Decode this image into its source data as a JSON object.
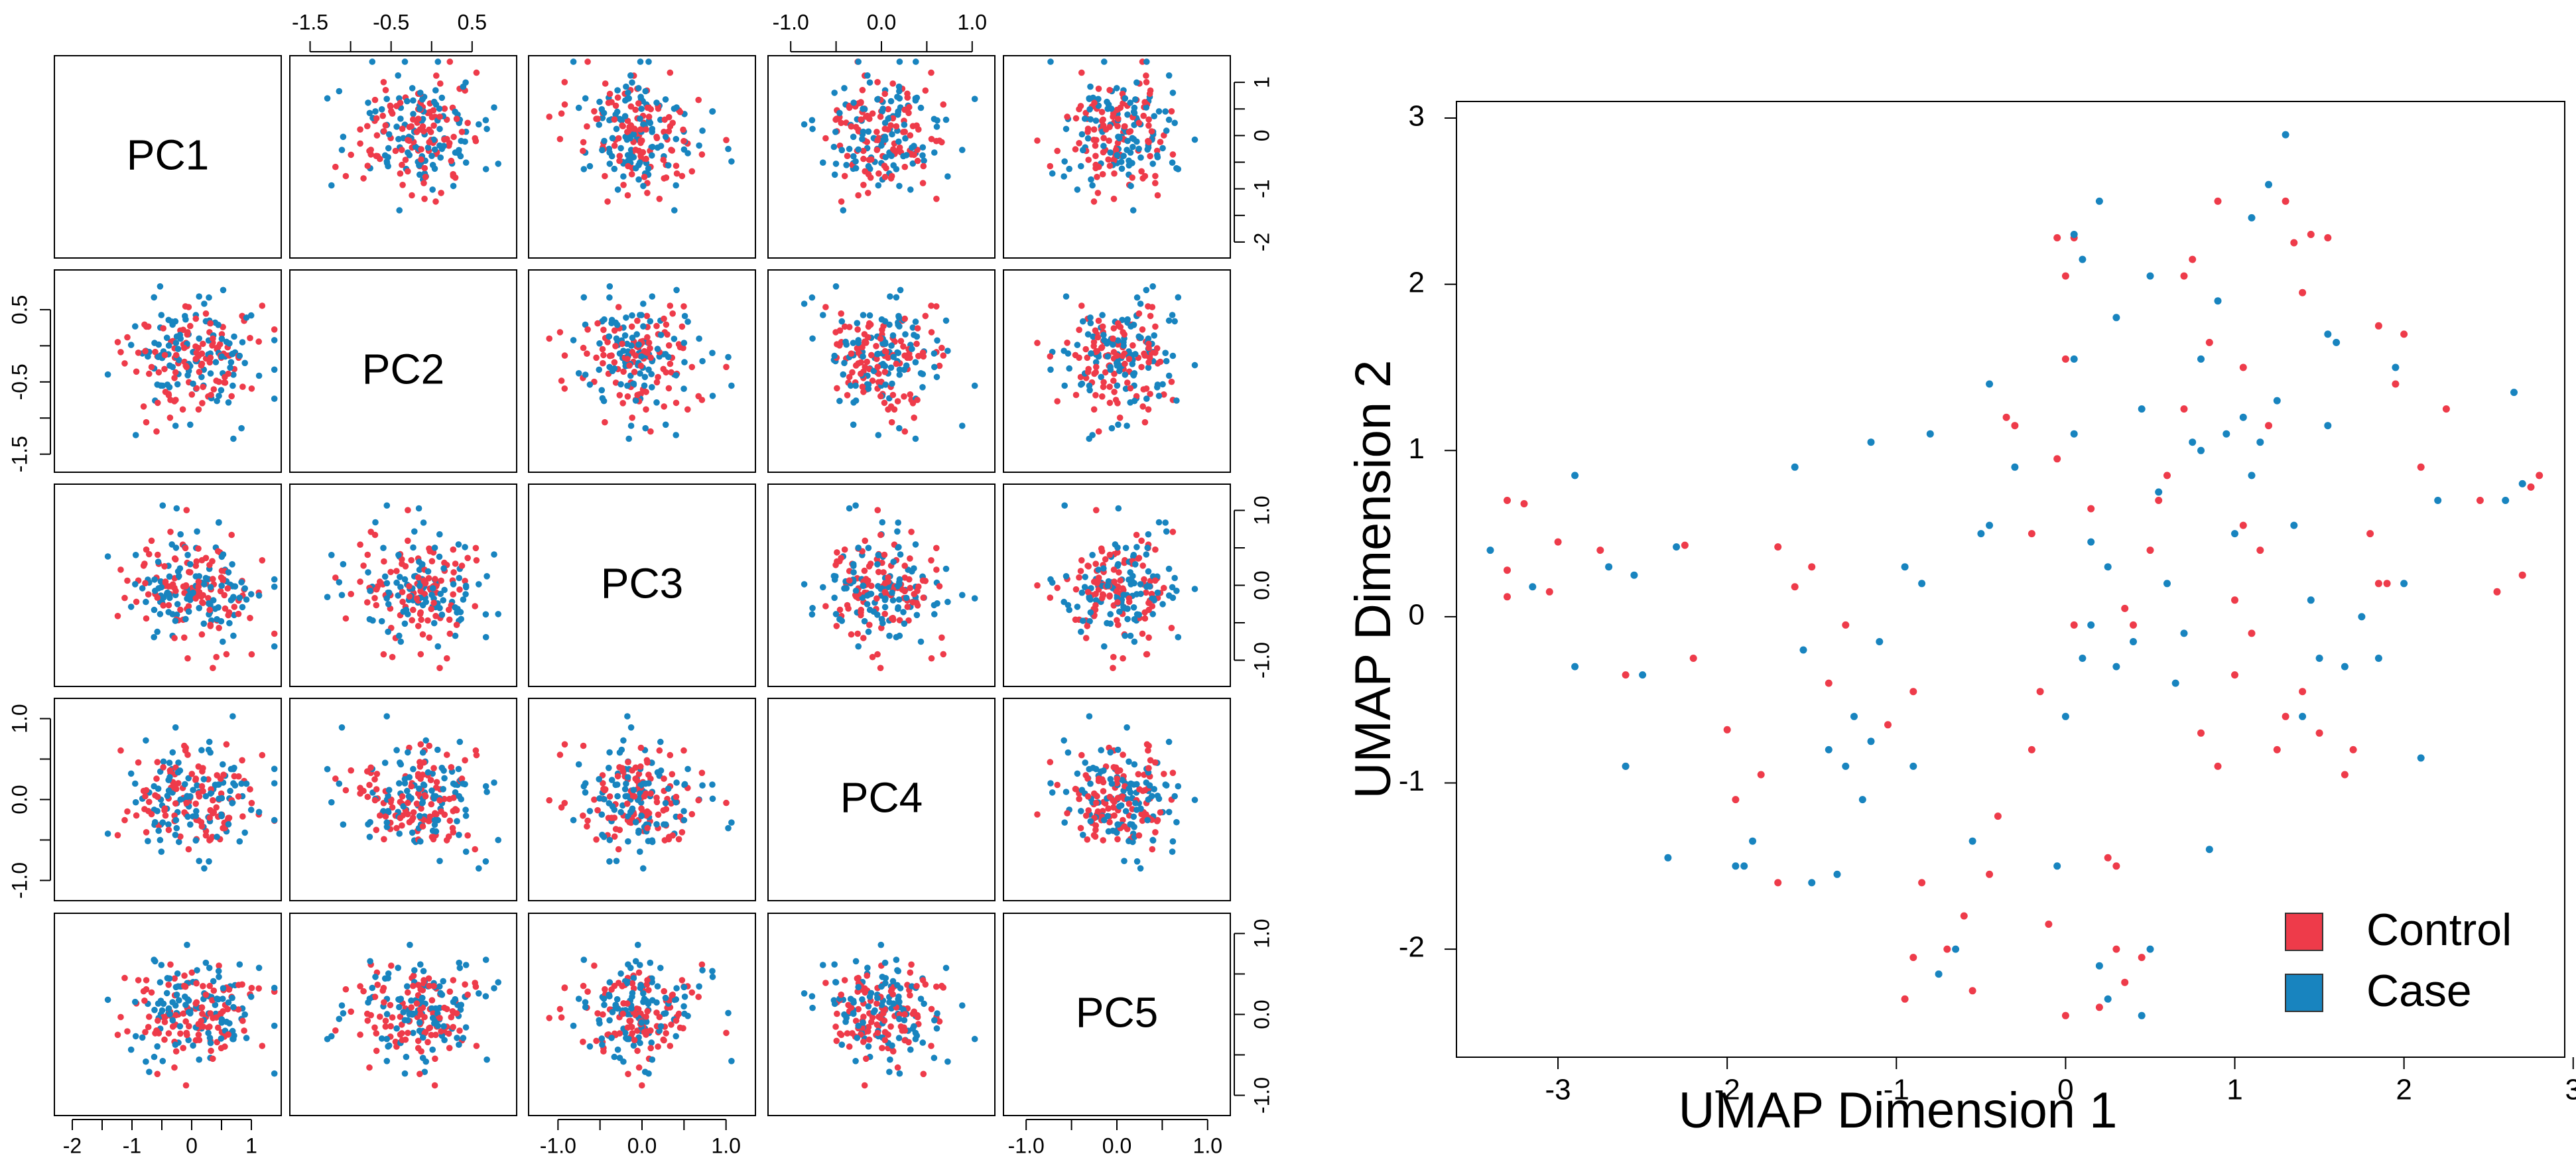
{
  "colors": {
    "control": "#ee3b4a",
    "case": "#1884bf",
    "axis": "#000000",
    "background": "#ffffff"
  },
  "chart_data": [
    {
      "type": "scatter",
      "subtype": "pairs",
      "variables": [
        "PC1",
        "PC2",
        "PC3",
        "PC4",
        "PC5"
      ],
      "groups": [
        "Control",
        "Case"
      ],
      "ranges": {
        "PC1": [
          -2.3,
          1.5
        ],
        "PC2": [
          -1.75,
          1.05
        ],
        "PC3": [
          -1.35,
          1.35
        ],
        "PC4": [
          -1.25,
          1.25
        ],
        "PC5": [
          -1.25,
          1.25
        ]
      },
      "tick_labels": {
        "PC1": [
          "-2",
          "-1",
          "0",
          "1"
        ],
        "PC2": [
          "-1.5",
          "-0.5",
          "0.5"
        ],
        "PC3": [
          "-1.0",
          "0.0",
          "1.0"
        ],
        "PC4": [
          "-1.0",
          "0.0",
          "1.0"
        ],
        "PC5": [
          "-1.0",
          "0.0",
          "1.0"
        ]
      },
      "grid": false,
      "legend": "none"
    },
    {
      "type": "scatter",
      "xlabel": "UMAP Dimension 1",
      "ylabel": "UMAP Dimension 2",
      "xlim": [
        -3.6,
        2.95
      ],
      "ylim": [
        -2.65,
        3.1
      ],
      "x_tick_labels": [
        "-3",
        "-2",
        "-1",
        "0",
        "1",
        "2",
        "3"
      ],
      "y_tick_labels": [
        "-2",
        "-1",
        "0",
        "1",
        "2",
        "3"
      ],
      "grid": false,
      "legend": "bottom-right",
      "legend_entries": [
        "Control",
        "Case"
      ],
      "series": [
        {
          "name": "Control",
          "points": [
            [
              -3.3,
              0.7
            ],
            [
              -3.2,
              0.68
            ],
            [
              -3.3,
              0.28
            ],
            [
              -3.3,
              0.12
            ],
            [
              -3.0,
              0.45
            ],
            [
              -3.05,
              0.15
            ],
            [
              -2.75,
              0.4
            ],
            [
              -2.25,
              0.43
            ],
            [
              -2.2,
              -0.25
            ],
            [
              -2.6,
              -0.35
            ],
            [
              -2.6,
              -0.9
            ],
            [
              -2.0,
              -0.68
            ],
            [
              -1.95,
              -1.1
            ],
            [
              -1.7,
              -1.6
            ],
            [
              -1.8,
              -0.95
            ],
            [
              -1.6,
              0.18
            ],
            [
              -1.5,
              0.3
            ],
            [
              -1.7,
              0.42
            ],
            [
              -1.3,
              -0.05
            ],
            [
              -1.05,
              -0.65
            ],
            [
              -0.9,
              -0.45
            ],
            [
              -0.85,
              -1.6
            ],
            [
              -0.9,
              -2.05
            ],
            [
              -0.95,
              -2.3
            ],
            [
              -0.7,
              -2.0
            ],
            [
              -0.6,
              -1.8
            ],
            [
              -0.55,
              -2.25
            ],
            [
              -0.45,
              -1.55
            ],
            [
              -0.4,
              -1.2
            ],
            [
              -0.35,
              1.2
            ],
            [
              -0.3,
              1.15
            ],
            [
              -0.2,
              0.5
            ],
            [
              -0.15,
              -0.45
            ],
            [
              -0.2,
              -0.8
            ],
            [
              -0.1,
              -1.85
            ],
            [
              0.0,
              -2.4
            ],
            [
              0.2,
              -2.35
            ],
            [
              0.25,
              -1.45
            ],
            [
              0.3,
              -2.0
            ],
            [
              0.35,
              -2.2
            ],
            [
              0.45,
              -2.05
            ],
            [
              0.0,
              1.55
            ],
            [
              0.0,
              2.05
            ],
            [
              0.05,
              2.28
            ],
            [
              -0.05,
              2.28
            ],
            [
              0.05,
              -0.05
            ],
            [
              0.15,
              0.65
            ],
            [
              0.35,
              0.05
            ],
            [
              0.4,
              -0.05
            ],
            [
              0.5,
              0.4
            ],
            [
              0.55,
              0.7
            ],
            [
              0.6,
              0.85
            ],
            [
              0.7,
              2.05
            ],
            [
              0.75,
              2.15
            ],
            [
              0.9,
              2.5
            ],
            [
              0.85,
              1.65
            ],
            [
              0.7,
              1.25
            ],
            [
              0.8,
              -0.7
            ],
            [
              0.9,
              -0.9
            ],
            [
              1.0,
              -0.35
            ],
            [
              1.0,
              0.1
            ],
            [
              1.05,
              0.55
            ],
            [
              1.1,
              -0.1
            ],
            [
              1.15,
              0.4
            ],
            [
              1.2,
              1.15
            ],
            [
              1.05,
              1.5
            ],
            [
              1.3,
              2.5
            ],
            [
              1.35,
              2.25
            ],
            [
              1.45,
              2.3
            ],
            [
              1.4,
              1.95
            ],
            [
              1.25,
              -0.8
            ],
            [
              1.3,
              -0.6
            ],
            [
              1.4,
              -0.45
            ],
            [
              1.5,
              -0.7
            ],
            [
              1.55,
              2.28
            ],
            [
              1.65,
              -0.95
            ],
            [
              1.7,
              -0.8
            ],
            [
              1.8,
              0.5
            ],
            [
              1.85,
              0.2
            ],
            [
              1.9,
              0.2
            ],
            [
              1.85,
              1.75
            ],
            [
              1.95,
              1.4
            ],
            [
              2.0,
              1.7
            ],
            [
              2.1,
              0.9
            ],
            [
              2.25,
              1.25
            ],
            [
              2.45,
              0.7
            ],
            [
              2.55,
              0.15
            ],
            [
              2.7,
              0.25
            ],
            [
              2.8,
              0.85
            ],
            [
              2.75,
              0.78
            ],
            [
              -0.05,
              0.95
            ],
            [
              0.3,
              -1.5
            ],
            [
              -1.4,
              -0.4
            ]
          ]
        },
        {
          "name": "Case",
          "points": [
            [
              -3.4,
              0.4
            ],
            [
              -3.15,
              0.18
            ],
            [
              -2.9,
              0.85
            ],
            [
              -2.9,
              -0.3
            ],
            [
              -2.7,
              0.3
            ],
            [
              -2.5,
              -0.35
            ],
            [
              -2.6,
              -0.9
            ],
            [
              -2.35,
              -1.45
            ],
            [
              -2.3,
              0.42
            ],
            [
              -1.9,
              -1.5
            ],
            [
              -1.85,
              -1.35
            ],
            [
              -1.6,
              0.9
            ],
            [
              -1.55,
              -0.2
            ],
            [
              -1.5,
              -1.6
            ],
            [
              -1.4,
              -0.8
            ],
            [
              -1.35,
              -1.55
            ],
            [
              -1.3,
              -0.9
            ],
            [
              -1.25,
              -0.6
            ],
            [
              -1.2,
              -1.1
            ],
            [
              -1.15,
              1.05
            ],
            [
              -1.15,
              -0.75
            ],
            [
              -1.1,
              -0.15
            ],
            [
              -0.95,
              0.3
            ],
            [
              -0.85,
              0.2
            ],
            [
              -0.9,
              -0.9
            ],
            [
              -0.8,
              1.1
            ],
            [
              -0.65,
              -2.0
            ],
            [
              -0.5,
              0.5
            ],
            [
              -0.45,
              0.55
            ],
            [
              -0.45,
              1.4
            ],
            [
              -0.3,
              0.9
            ],
            [
              0.0,
              -0.6
            ],
            [
              0.05,
              1.1
            ],
            [
              0.05,
              1.55
            ],
            [
              0.05,
              2.3
            ],
            [
              0.1,
              2.15
            ],
            [
              0.2,
              -2.1
            ],
            [
              0.15,
              0.45
            ],
            [
              0.25,
              0.3
            ],
            [
              0.3,
              -0.3
            ],
            [
              0.2,
              2.5
            ],
            [
              0.3,
              1.8
            ],
            [
              0.45,
              1.25
            ],
            [
              0.5,
              2.05
            ],
            [
              0.55,
              0.75
            ],
            [
              0.6,
              0.2
            ],
            [
              0.65,
              -0.4
            ],
            [
              0.7,
              -0.1
            ],
            [
              0.75,
              1.05
            ],
            [
              0.8,
              1.55
            ],
            [
              0.85,
              -1.4
            ],
            [
              0.9,
              1.9
            ],
            [
              0.95,
              1.1
            ],
            [
              1.0,
              0.5
            ],
            [
              1.05,
              1.2
            ],
            [
              1.1,
              0.85
            ],
            [
              1.1,
              2.4
            ],
            [
              1.15,
              1.05
            ],
            [
              1.2,
              2.6
            ],
            [
              1.25,
              1.3
            ],
            [
              1.3,
              2.9
            ],
            [
              1.35,
              0.55
            ],
            [
              1.4,
              -0.6
            ],
            [
              1.45,
              0.1
            ],
            [
              1.5,
              -0.25
            ],
            [
              1.55,
              1.7
            ],
            [
              1.6,
              1.65
            ],
            [
              1.65,
              -0.3
            ],
            [
              1.75,
              0.0
            ],
            [
              1.85,
              -0.25
            ],
            [
              2.0,
              0.2
            ],
            [
              2.1,
              -0.85
            ],
            [
              2.2,
              0.7
            ],
            [
              2.6,
              0.7
            ],
            [
              2.65,
              1.35
            ],
            [
              2.7,
              0.8
            ],
            [
              1.55,
              1.15
            ],
            [
              0.5,
              -2.0
            ],
            [
              0.45,
              -2.4
            ],
            [
              0.25,
              -2.3
            ],
            [
              -0.05,
              -1.5
            ],
            [
              0.1,
              -0.25
            ],
            [
              0.15,
              -0.05
            ],
            [
              0.4,
              -0.15
            ],
            [
              -0.75,
              -2.15
            ],
            [
              -0.55,
              -1.35
            ],
            [
              -2.55,
              0.25
            ],
            [
              -1.95,
              -1.5
            ],
            [
              1.95,
              1.5
            ],
            [
              0.8,
              1.0
            ]
          ]
        }
      ]
    }
  ]
}
